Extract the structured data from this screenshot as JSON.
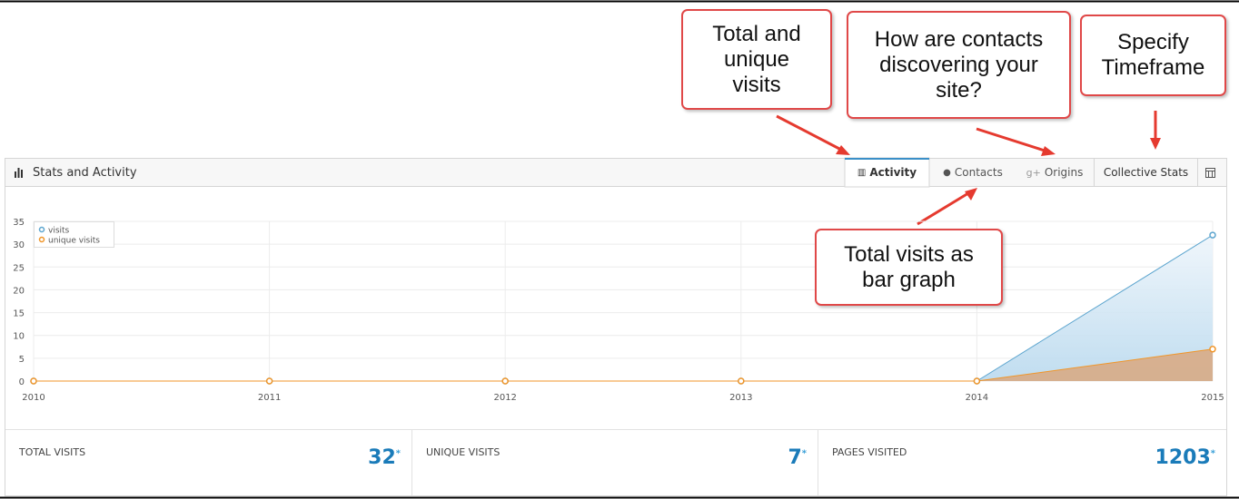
{
  "panel": {
    "title": "Stats and Activity",
    "tabs": [
      "Activity",
      "Contacts",
      "Origins",
      "Collective Stats"
    ]
  },
  "callouts": [
    "Total and unique visits",
    "How are contacts discovering your site?",
    "Specify Timeframe",
    "Total visits as bar graph"
  ],
  "chart_data": {
    "type": "area",
    "x": [
      2010,
      2011,
      2012,
      2013,
      2014,
      2015
    ],
    "series": [
      {
        "name": "visits",
        "color": "#5ea6cf",
        "values": [
          0,
          0,
          0,
          0,
          0,
          32
        ]
      },
      {
        "name": "unique visits",
        "color": "#f0962a",
        "values": [
          0,
          0,
          0,
          0,
          0,
          7
        ]
      }
    ],
    "xlim": [
      2010,
      2015
    ],
    "xticks": [
      2010,
      2011,
      2012,
      2013,
      2014,
      2015
    ],
    "ylim": [
      0,
      35
    ],
    "yticks": [
      0,
      5,
      10,
      15,
      20,
      25,
      30,
      35
    ],
    "grid": true
  },
  "stats": [
    {
      "label": "TOTAL VISITS",
      "value": 32
    },
    {
      "label": "UNIQUE VISITS",
      "value": 7
    },
    {
      "label": "PAGES VISITED",
      "value": 1203
    }
  ],
  "stats_mark": "*"
}
